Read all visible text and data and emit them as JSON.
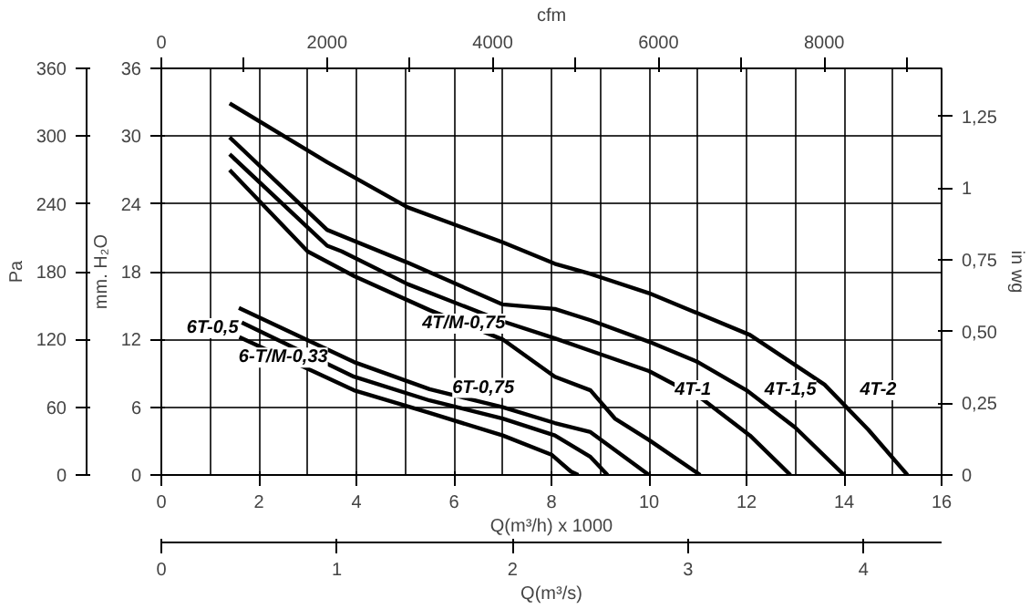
{
  "chart_data": {
    "type": "line",
    "xlabel": "Q(m³/h) x 1000",
    "ylabel": "mm. H₂O",
    "y2label": "in wg",
    "y3label": "Pa",
    "x2label": "cfm",
    "xlim": [
      0,
      16
    ],
    "xticks": [
      0,
      2,
      4,
      6,
      8,
      10,
      12,
      14,
      16
    ],
    "ylim": [
      0,
      36
    ],
    "yticks": [
      0,
      6,
      12,
      18,
      24,
      30,
      36
    ],
    "y2lim": [
      0,
      1.417
    ],
    "y2ticks": [
      0,
      {
        "value": 0.25,
        "label": "0,25"
      },
      {
        "value": 0.5,
        "label": "0,50"
      },
      {
        "value": 0.75,
        "label": "0,75"
      },
      1,
      {
        "value": 1.25,
        "label": "1,25"
      }
    ],
    "y3lim": [
      0,
      360
    ],
    "y3ticks": [
      0,
      60,
      120,
      180,
      240,
      300,
      360
    ],
    "x2lim": [
      0,
      9417
    ],
    "x2ticks": [
      0,
      {
        "value": 1000,
        "label": null
      },
      2000,
      {
        "value": 3000,
        "label": null
      },
      4000,
      {
        "value": 5000,
        "label": null
      },
      6000,
      {
        "value": 7000,
        "label": null
      },
      8000,
      {
        "value": 9000,
        "label": null
      }
    ],
    "grid": true,
    "marker": "none",
    "line_style": "solid",
    "series": [
      {
        "color": "#000000",
        "x": [
          1.4,
          3.4,
          5.05,
          7.0,
          8.07,
          8.8,
          10.0,
          12.07,
          13.6,
          14.5,
          15.3
        ],
        "values": [
          32.9,
          27.7,
          23.7,
          20.6,
          18.7,
          17.8,
          16.1,
          12.4,
          8.0,
          4.0,
          0
        ]
      },
      {
        "color": "#000000",
        "x": [
          1.4,
          3.4,
          5.05,
          7.0,
          8.07,
          8.8,
          10.0,
          11.0,
          12.0,
          13.0,
          14.0
        ],
        "values": [
          29.9,
          21.7,
          18.8,
          15.1,
          14.7,
          13.7,
          11.8,
          10.0,
          7.5,
          4.2,
          0
        ]
      },
      {
        "color": "#000000",
        "x": [
          1.4,
          3.4,
          3.7,
          5.05,
          7.0,
          8.07,
          8.8,
          10.0,
          11.1,
          12.07,
          12.9
        ],
        "values": [
          28.4,
          20.3,
          19.8,
          16.9,
          13.6,
          12.1,
          11.0,
          9.2,
          6.7,
          3.5,
          0
        ]
      },
      {
        "color": "#000000",
        "x": [
          1.4,
          3.0,
          3.96,
          5.5,
          7.0,
          8.07,
          8.8,
          9.3,
          10.0,
          11.05
        ],
        "values": [
          27.0,
          19.8,
          17.6,
          14.6,
          12.0,
          8.7,
          7.5,
          5.0,
          3.1,
          0
        ]
      },
      {
        "color": "#000000",
        "x": [
          1.59,
          3.95,
          5.5,
          7.0,
          8.07,
          8.8,
          10.0
        ],
        "values": [
          14.8,
          10.0,
          7.6,
          6.0,
          4.6,
          3.8,
          0
        ]
      },
      {
        "color": "#000000",
        "x": [
          1.65,
          3.95,
          5.5,
          7.0,
          8.07,
          8.8,
          9.15
        ],
        "values": [
          13.5,
          8.7,
          6.6,
          5.0,
          3.5,
          1.6,
          0
        ]
      },
      {
        "color": "#000000",
        "x": [
          1.6,
          3.95,
          5.5,
          7.0,
          8.0,
          8.4,
          8.55
        ],
        "values": [
          12.2,
          7.5,
          5.5,
          3.5,
          1.8,
          0.3,
          0
        ]
      }
    ],
    "annotations": [
      {
        "text": "6T-0,5",
        "x": 1.05,
        "y": 13.0
      },
      {
        "text": "4T/M-0,75",
        "x": 6.2,
        "y": 13.4
      },
      {
        "text": "6-T/M-0,33",
        "x": 2.5,
        "y": 10.4
      },
      {
        "text": "6T-0,75",
        "x": 6.6,
        "y": 7.7
      },
      {
        "text": "4T-1",
        "x": 10.9,
        "y": 7.5
      },
      {
        "text": "4T-1,5",
        "x": 12.9,
        "y": 7.5
      },
      {
        "text": "4T-2",
        "x": 14.7,
        "y": 7.5
      },
      "0",
      "1",
      "2",
      "3",
      "4",
      "Q(m³/s)"
    ]
  }
}
